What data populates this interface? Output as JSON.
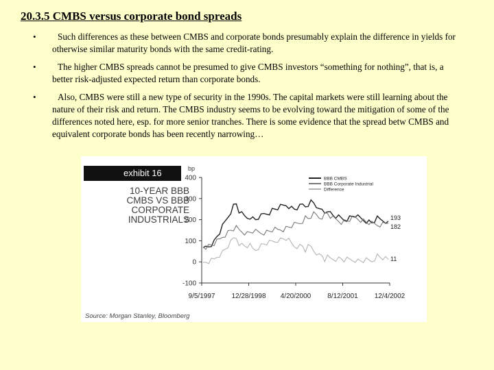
{
  "slide": {
    "title": "20.3.5 CMBS versus corporate bond spreads",
    "bullet_marker": "•",
    "bullets": [
      {
        "text": "Such differences as these between CMBS and corporate bonds presumably explain the difference in yields for otherwise similar maturity bonds with the same credit-rating."
      },
      {
        "text": "The higher CMBS spreads cannot be presumed to give CMBS investors “something for nothing”, that is, a better risk-adjusted expected return than corporate bonds."
      },
      {
        "text": "Also, CMBS were still a new type of security in the 1990s. The capital markets were still learning about the nature of their risk and return. The CMBS industry seems to be evolving toward the mitigation of some of the differences noted here, esp. for more senior tranches. There is some evidence that the spread betw CMBS and equivalent corporate bonds has been recently narrowing…"
      }
    ]
  },
  "exhibit": {
    "badge": "exhibit 16",
    "title_lines": [
      "10-YEAR BBB",
      "CMBS VS BBB",
      "CORPORATE",
      "INDUSTRIALS"
    ],
    "source": "Source: Morgan Stanley, Bloomberg"
  },
  "chart_data": {
    "type": "line",
    "ylabel": "bp",
    "ylim": [
      -100,
      400
    ],
    "yticks": [
      -100,
      0,
      100,
      200,
      300,
      400
    ],
    "x_tick_labels": [
      "9/5/1997",
      "12/28/1998",
      "4/20/2000",
      "8/12/2001",
      "12/4/2002"
    ],
    "grid": false,
    "legend_placement": "top-right",
    "series": [
      {
        "name": "BBB CMBS",
        "color": "#222222",
        "end_label": "193",
        "values": [
          68,
          70,
          75,
          85,
          95,
          120,
          140,
          165,
          190,
          215,
          240,
          265,
          275,
          240,
          225,
          215,
          210,
          215,
          205,
          200,
          210,
          215,
          225,
          230,
          235,
          245,
          250,
          255,
          260,
          265,
          270,
          265,
          255,
          250,
          255,
          260,
          270,
          265,
          275,
          285,
          280,
          265,
          240,
          245,
          235,
          250,
          230,
          220,
          215,
          210,
          205,
          200,
          205,
          210,
          215,
          220,
          210,
          205,
          200,
          195,
          190,
          185,
          195,
          205,
          200,
          198,
          195,
          193
        ]
      },
      {
        "name": "BBB Corporate Industrial",
        "color": "#777777",
        "end_label": "182",
        "values": [
          70,
          72,
          75,
          80,
          85,
          95,
          105,
          120,
          130,
          140,
          150,
          155,
          160,
          150,
          145,
          140,
          135,
          140,
          145,
          142,
          140,
          138,
          140,
          142,
          145,
          150,
          152,
          150,
          155,
          155,
          160,
          165,
          170,
          175,
          180,
          185,
          195,
          210,
          205,
          215,
          225,
          220,
          210,
          215,
          225,
          230,
          215,
          205,
          200,
          195,
          190,
          192,
          195,
          200,
          205,
          210,
          205,
          200,
          195,
          188,
          185,
          180,
          178,
          176,
          178,
          180,
          182,
          182
        ]
      },
      {
        "name": "Difference",
        "color": "#b3b3b3",
        "end_label": "11",
        "values": [
          -2,
          -2,
          0,
          5,
          10,
          25,
          35,
          45,
          60,
          75,
          90,
          110,
          115,
          90,
          80,
          75,
          75,
          75,
          60,
          58,
          70,
          77,
          85,
          88,
          90,
          95,
          98,
          105,
          105,
          110,
          110,
          100,
          85,
          75,
          75,
          75,
          75,
          55,
          70,
          70,
          55,
          45,
          30,
          30,
          10,
          20,
          15,
          15,
          15,
          15,
          15,
          8,
          10,
          10,
          10,
          10,
          5,
          5,
          5,
          7,
          5,
          5,
          17,
          29,
          22,
          18,
          13,
          11
        ]
      }
    ]
  }
}
